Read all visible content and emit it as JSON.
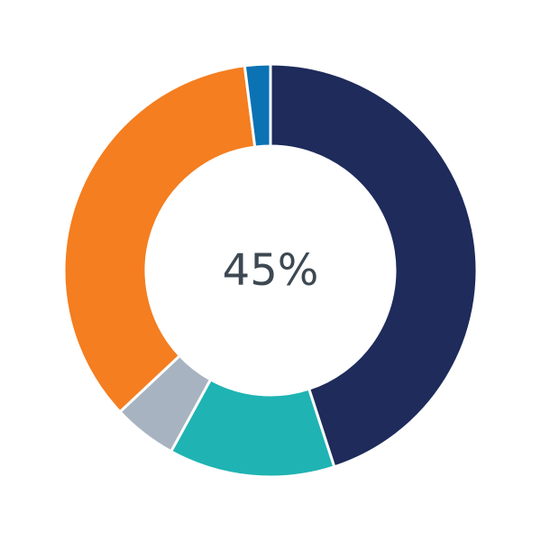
{
  "chart_data": {
    "type": "pie",
    "variant": "donut",
    "center_label": "45%",
    "values": [
      45,
      13,
      5,
      35,
      2
    ],
    "colors": [
      "#1e2b5b",
      "#1fb3b3",
      "#a8b3c1",
      "#f47e20",
      "#0b72b4"
    ],
    "start": "top",
    "direction": "clockwise",
    "legend": "none"
  }
}
